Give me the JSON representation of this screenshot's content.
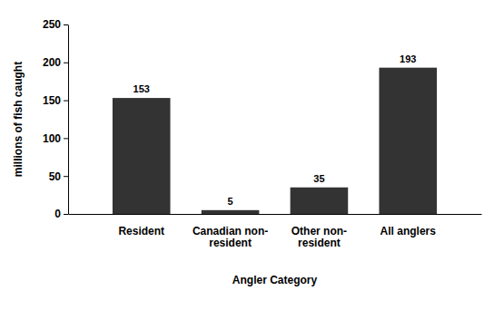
{
  "chart_data": {
    "type": "bar",
    "x_label": "Angler Category",
    "y_label": "millions of fish caught",
    "categories": [
      "Resident",
      "Canadian non-resident",
      "Other non-resident",
      "All anglers"
    ],
    "values": [
      153,
      5,
      35,
      193
    ],
    "color": "#333333",
    "ylim": [
      0,
      250
    ],
    "yticks": [
      0,
      50,
      100,
      150,
      200,
      250
    ],
    "grid": false,
    "data_labels": true
  }
}
